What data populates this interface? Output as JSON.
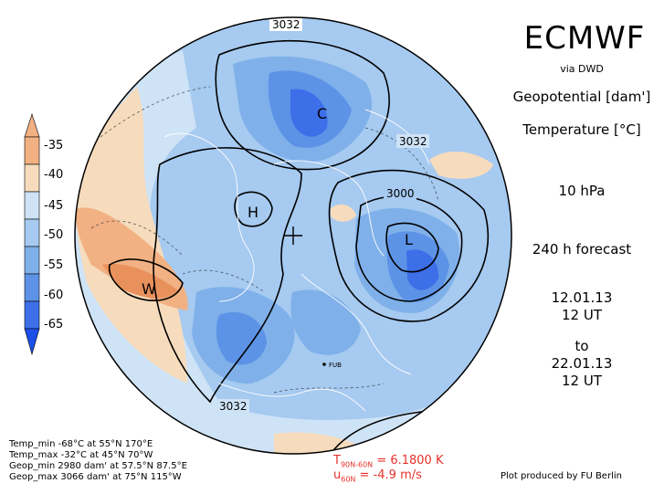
{
  "header": {
    "title": "ECMWF",
    "source": "via DWD",
    "var1": "Geopotential [dam']",
    "var2": "Temperature [°C]",
    "level": "10 hPa",
    "forecast": "240 h forecast",
    "init_date": "12.01.13",
    "init_time": "12 UT",
    "to": "to",
    "valid_date": "22.01.13",
    "valid_time": "12 UT"
  },
  "legend": {
    "labels": [
      "-35",
      "-40",
      "-45",
      "-50",
      "-55",
      "-60",
      "-65"
    ],
    "colors": [
      "#f2b183",
      "#f6dcbd",
      "#cfe3f6",
      "#a6caf0",
      "#7fb0ea",
      "#5d93e6",
      "#3d6fe9"
    ]
  },
  "map": {
    "contour_labels": [
      "3032",
      "3032",
      "3000",
      "3032"
    ],
    "markers": [
      "C",
      "H",
      "L",
      "W"
    ],
    "station": "FUB"
  },
  "stats": [
    "Temp_min  -68°C at 55°N 170°E",
    "Temp_max  -32°C at 45°N 70°W",
    "Geop_min 2980 dam' at 57.5°N 87.5°E",
    "Geop_max 3066 dam' at 75°N 115°W"
  ],
  "diagnostics": {
    "t_label": "T",
    "t_sub": "90N-60N",
    "t_value": "=  6.1800 K",
    "u_label": "u",
    "u_sub": "60N",
    "u_value": "=  -4.9  m/s"
  },
  "credit": "Plot produced by FU Berlin",
  "colors": {
    "ocean_light": "#cfe3f6",
    "blue": "#a6caf0",
    "blue2": "#7fb0ea",
    "blue3": "#5d93e6",
    "blue4": "#3d6fe9",
    "warm1": "#f6dcbd",
    "warm2": "#f2b183"
  }
}
